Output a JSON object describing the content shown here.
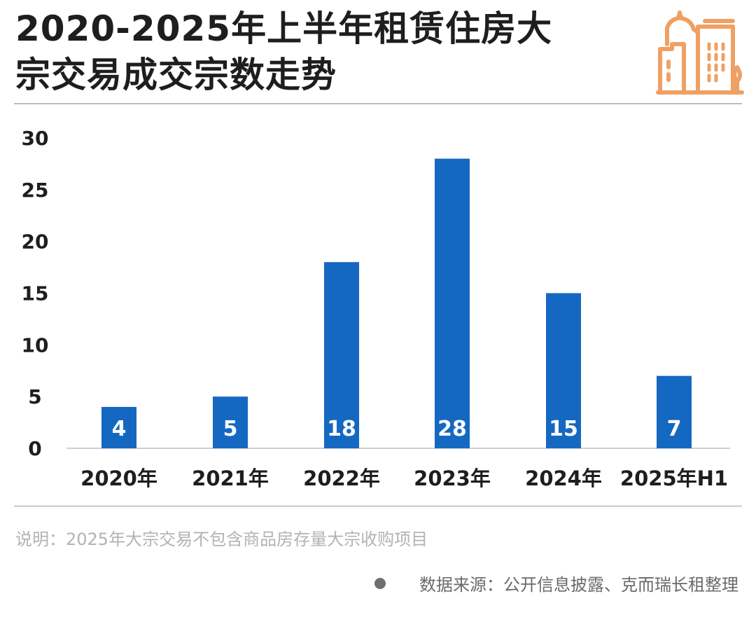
{
  "header": {
    "title_line1": "2020-2025年上半年租赁住房大",
    "title_line2": "宗交易成交宗数走势",
    "icon": "city-buildings-icon",
    "icon_color": "#f0a062"
  },
  "chart_data": {
    "type": "bar",
    "title": "2020-2025年上半年租赁住房大宗交易成交宗数走势",
    "categories": [
      "2020年",
      "2021年",
      "2022年",
      "2023年",
      "2024年",
      "2025年H1"
    ],
    "values": [
      4,
      5,
      18,
      28,
      15,
      7
    ],
    "data_labels": [
      "4",
      "5",
      "18",
      "28",
      "15",
      "7"
    ],
    "ylim": [
      0,
      30
    ],
    "yticks": [
      "0",
      "5",
      "10",
      "15",
      "20",
      "25",
      "30"
    ],
    "xlabel": "",
    "ylabel": "",
    "grid": false,
    "bar_color": "#1568c1"
  },
  "footer": {
    "note": "说明：2025年大宗交易不包含商品房存量大宗收购项目",
    "source": "数据来源：公开信息披露、克而瑞长租整理"
  }
}
